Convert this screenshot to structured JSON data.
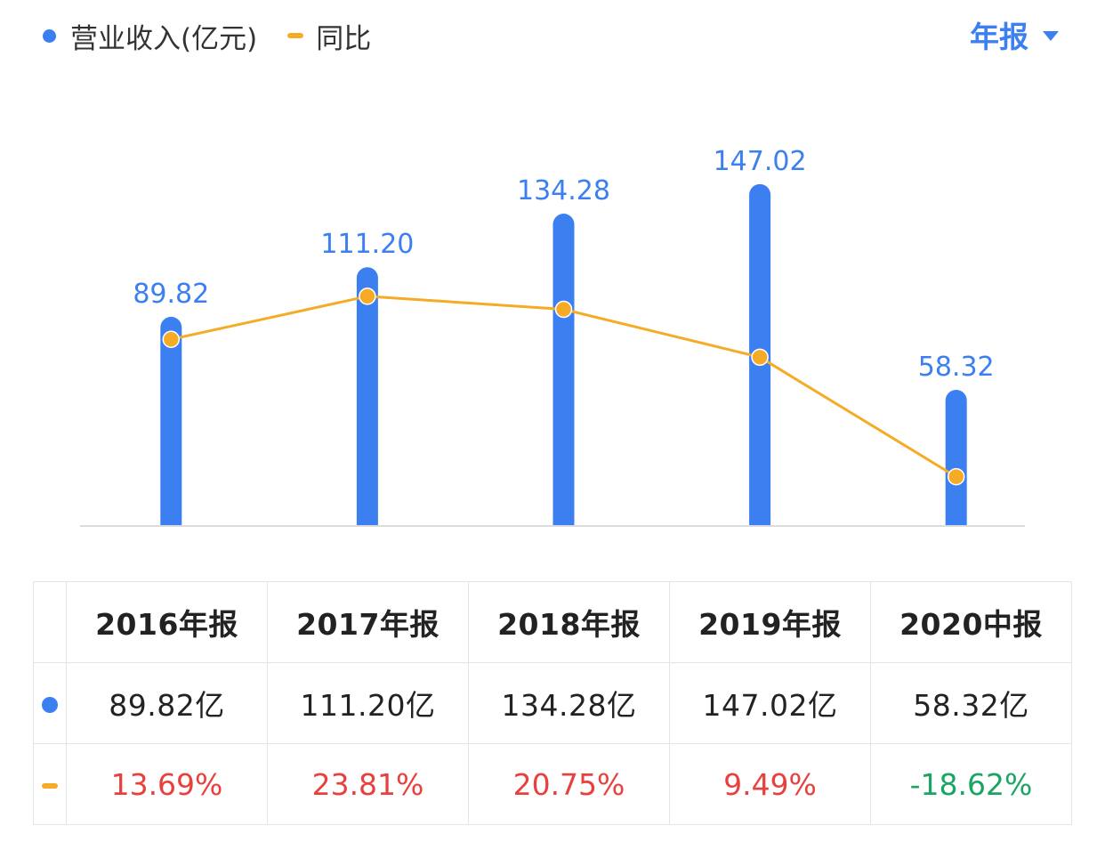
{
  "colors": {
    "bar": "#3c7ff0",
    "line": "#f5ab25",
    "positive": "#e8413d",
    "negative": "#1aa563",
    "period": "#3c7ff0"
  },
  "legend": {
    "series1": "营业收入(亿元)",
    "series2": "同比"
  },
  "period_selector": {
    "label": "年报"
  },
  "chart_data": {
    "type": "bar+line",
    "categories": [
      "2016年报",
      "2017年报",
      "2018年报",
      "2019年报",
      "2020中报"
    ],
    "series": [
      {
        "name": "营业收入(亿元)",
        "type": "bar",
        "values": [
          89.82,
          111.2,
          134.28,
          147.02,
          58.32
        ],
        "labels": [
          "89.82",
          "111.20",
          "134.28",
          "147.02",
          "58.32"
        ]
      },
      {
        "name": "同比",
        "type": "line",
        "values": [
          13.69,
          23.81,
          20.75,
          9.49,
          -18.62
        ]
      }
    ],
    "bar_ylim": [
      0,
      165
    ],
    "line_ylim": [
      -30,
      60
    ]
  },
  "table": {
    "headers": [
      "2016年报",
      "2017年报",
      "2018年报",
      "2019年报",
      "2020中报"
    ],
    "revenue": [
      "89.82亿",
      "111.20亿",
      "134.28亿",
      "147.02亿",
      "58.32亿"
    ],
    "growth": [
      "13.69%",
      "23.81%",
      "20.75%",
      "9.49%",
      "-18.62%"
    ]
  }
}
